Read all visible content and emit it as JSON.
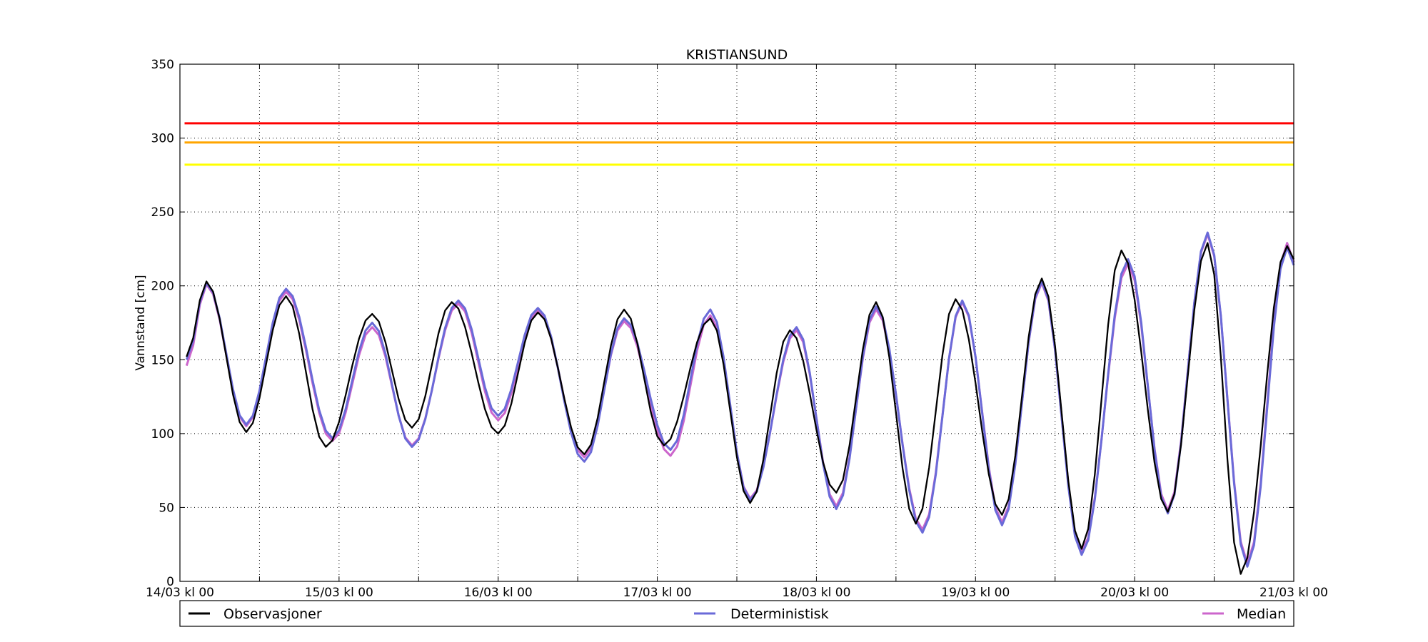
{
  "chart_data": {
    "type": "line",
    "title": "KRISTIANSUND",
    "xlabel": "",
    "ylabel": "Vannstand [cm]",
    "ylim": [
      0,
      350
    ],
    "yticks": [
      0,
      50,
      100,
      150,
      200,
      250,
      300,
      350
    ],
    "xlim_hours": [
      0,
      168
    ],
    "xtick_labels": [
      "14/03 kl 00",
      "15/03 kl 00",
      "16/03 kl 00",
      "17/03 kl 00",
      "18/03 kl 00",
      "19/03 kl 00",
      "20/03 kl 00",
      "21/03 kl 00"
    ],
    "grid": true,
    "legend_placement": "bottom, below plot",
    "thresholds": [
      {
        "value": 310,
        "color": "#ff0000"
      },
      {
        "value": 297,
        "color": "#ffa500"
      },
      {
        "value": 282,
        "color": "#ffff00"
      }
    ],
    "series": [
      {
        "name": "Observasjoner",
        "color": "#000000",
        "extrema": [
          [
            1,
            152
          ],
          [
            4,
            203
          ],
          [
            10,
            101
          ],
          [
            16,
            193
          ],
          [
            22,
            91
          ],
          [
            29,
            181
          ],
          [
            35,
            104
          ],
          [
            41,
            189
          ],
          [
            48,
            100
          ],
          [
            54,
            182
          ],
          [
            61,
            86
          ],
          [
            67,
            184
          ],
          [
            73,
            92
          ],
          [
            80,
            178
          ],
          [
            86,
            53
          ],
          [
            92,
            170
          ],
          [
            99,
            60
          ],
          [
            105,
            189
          ],
          [
            111,
            39
          ],
          [
            117,
            191
          ],
          [
            124,
            45
          ],
          [
            130,
            205
          ],
          [
            136,
            22
          ],
          [
            142,
            224
          ],
          [
            149,
            47
          ],
          [
            155,
            229
          ],
          [
            160,
            5
          ],
          [
            167,
            227
          ],
          [
            168,
            218
          ]
        ]
      },
      {
        "name": "Deterministisk",
        "color": "#6a6ad8",
        "extrema": [
          [
            1,
            150
          ],
          [
            4,
            202
          ],
          [
            10,
            106
          ],
          [
            16,
            198
          ],
          [
            23,
            97
          ],
          [
            29,
            175
          ],
          [
            35,
            91
          ],
          [
            42,
            190
          ],
          [
            48,
            112
          ],
          [
            54,
            185
          ],
          [
            61,
            81
          ],
          [
            67,
            178
          ],
          [
            74,
            89
          ],
          [
            80,
            184
          ],
          [
            86,
            55
          ],
          [
            93,
            172
          ],
          [
            99,
            49
          ],
          [
            105,
            186
          ],
          [
            112,
            33
          ],
          [
            118,
            190
          ],
          [
            124,
            38
          ],
          [
            130,
            203
          ],
          [
            136,
            18
          ],
          [
            143,
            218
          ],
          [
            149,
            46
          ],
          [
            155,
            236
          ],
          [
            161,
            10
          ],
          [
            167,
            226
          ],
          [
            168,
            214
          ]
        ]
      },
      {
        "name": "Median",
        "color": "#cc66cc",
        "extrema": [
          [
            1,
            146
          ],
          [
            4,
            201
          ],
          [
            10,
            105
          ],
          [
            16,
            196
          ],
          [
            23,
            95
          ],
          [
            29,
            172
          ],
          [
            35,
            92
          ],
          [
            42,
            188
          ],
          [
            48,
            109
          ],
          [
            54,
            183
          ],
          [
            61,
            84
          ],
          [
            67,
            176
          ],
          [
            74,
            85
          ],
          [
            80,
            180
          ],
          [
            86,
            56
          ],
          [
            93,
            170
          ],
          [
            99,
            51
          ],
          [
            105,
            184
          ],
          [
            112,
            35
          ],
          [
            118,
            189
          ],
          [
            124,
            40
          ],
          [
            130,
            202
          ],
          [
            136,
            20
          ],
          [
            143,
            215
          ],
          [
            149,
            48
          ],
          [
            155,
            235
          ],
          [
            161,
            12
          ],
          [
            167,
            229
          ],
          [
            168,
            216
          ]
        ]
      }
    ]
  }
}
